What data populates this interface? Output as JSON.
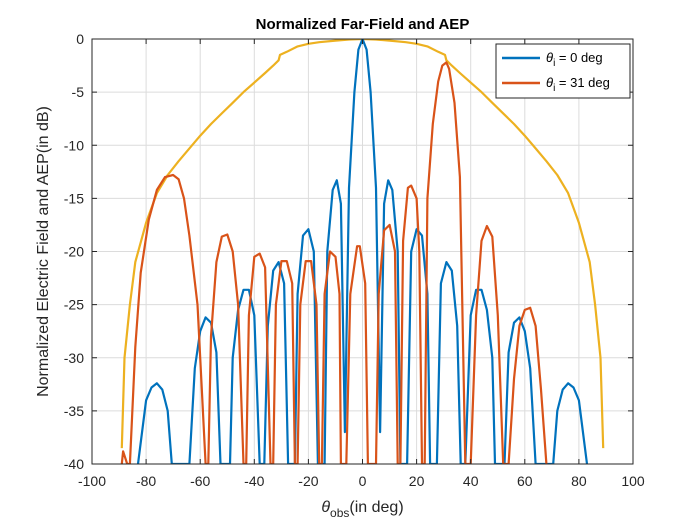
{
  "chart_data": {
    "type": "line",
    "title": "Normalized Far-Field and AEP",
    "xlabel": {
      "main": "θ",
      "sub": "obs",
      "suffix": "(in deg)"
    },
    "ylabel": "Normalized Electric Field and AEP(in dB)",
    "xlim": [
      -100,
      100
    ],
    "ylim": [
      -40,
      0
    ],
    "xticks": [
      "-100",
      "-80",
      "-60",
      "-40",
      "-20",
      "0",
      "20",
      "40",
      "60",
      "80",
      "100"
    ],
    "yticks": [
      "0",
      "-5",
      "-10",
      "-15",
      "-20",
      "-25",
      "-30",
      "-35",
      "-40"
    ],
    "grid": true,
    "legend_position": "top-right",
    "legend": [
      {
        "sym": "θ",
        "sub": "i",
        "rest": " = 0 deg",
        "color": "#0072BD"
      },
      {
        "sym": "θ",
        "sub": "i",
        "rest": " = 31 deg",
        "color": "#D95319"
      }
    ],
    "series": [
      {
        "name": "θi = 0 deg",
        "color": "#0072BD",
        "points": [
          [
            -83,
            -40
          ],
          [
            -80,
            -34
          ],
          [
            -78,
            -32.8
          ],
          [
            -76,
            -32.4
          ],
          [
            -74,
            -33
          ],
          [
            -72,
            -35
          ],
          [
            -70.5,
            -40
          ],
          [
            -64,
            -40
          ],
          [
            -62,
            -31
          ],
          [
            -60,
            -27.5
          ],
          [
            -58,
            -26.2
          ],
          [
            -56,
            -26.7
          ],
          [
            -54,
            -29.5
          ],
          [
            -52.5,
            -40
          ],
          [
            -49,
            -40
          ],
          [
            -48,
            -30
          ],
          [
            -46,
            -25.5
          ],
          [
            -44,
            -23.6
          ],
          [
            -42,
            -23.6
          ],
          [
            -40,
            -26
          ],
          [
            -38,
            -40
          ],
          [
            -36.3,
            -40
          ],
          [
            -35,
            -27
          ],
          [
            -33,
            -21.8
          ],
          [
            -31,
            -21
          ],
          [
            -29,
            -23
          ],
          [
            -27.5,
            -40
          ],
          [
            -25,
            -40
          ],
          [
            -24,
            -24
          ],
          [
            -22,
            -18.5
          ],
          [
            -20,
            -17.9
          ],
          [
            -18,
            -20
          ],
          [
            -16.5,
            -40
          ],
          [
            -14,
            -40
          ],
          [
            -13,
            -20
          ],
          [
            -11,
            -14.2
          ],
          [
            -9.5,
            -13.3
          ],
          [
            -8,
            -15.5
          ],
          [
            -6.5,
            -37
          ],
          [
            -5,
            -14
          ],
          [
            -3,
            -5
          ],
          [
            -1.5,
            -1
          ],
          [
            0,
            0
          ],
          [
            1.5,
            -1
          ],
          [
            3,
            -5
          ],
          [
            5,
            -14
          ],
          [
            6.5,
            -37
          ],
          [
            8,
            -15.5
          ],
          [
            9.5,
            -13.3
          ],
          [
            11,
            -14.2
          ],
          [
            13,
            -20
          ],
          [
            14,
            -40
          ],
          [
            16.5,
            -40
          ],
          [
            18,
            -20
          ],
          [
            20,
            -17.9
          ],
          [
            22,
            -18.5
          ],
          [
            24,
            -24
          ],
          [
            25,
            -40
          ],
          [
            27.5,
            -40
          ],
          [
            29,
            -23
          ],
          [
            31,
            -21
          ],
          [
            33,
            -21.8
          ],
          [
            35,
            -27
          ],
          [
            36.3,
            -40
          ],
          [
            38,
            -40
          ],
          [
            40,
            -26
          ],
          [
            42,
            -23.6
          ],
          [
            44,
            -23.6
          ],
          [
            46,
            -25.5
          ],
          [
            48,
            -30
          ],
          [
            49,
            -40
          ],
          [
            52.5,
            -40
          ],
          [
            54,
            -29.5
          ],
          [
            56,
            -26.7
          ],
          [
            58,
            -26.2
          ],
          [
            60,
            -27.5
          ],
          [
            62,
            -31
          ],
          [
            64,
            -40
          ],
          [
            70.5,
            -40
          ],
          [
            72,
            -35
          ],
          [
            74,
            -33
          ],
          [
            76,
            -32.4
          ],
          [
            78,
            -32.8
          ],
          [
            80,
            -34
          ],
          [
            83,
            -40
          ]
        ]
      },
      {
        "name": "θi = 31 deg",
        "color": "#D95319",
        "points": [
          [
            -89,
            -40
          ],
          [
            -88.5,
            -38.8
          ],
          [
            -87,
            -40
          ],
          [
            -86,
            -40
          ],
          [
            -84,
            -29
          ],
          [
            -82,
            -22
          ],
          [
            -79,
            -17
          ],
          [
            -76,
            -14.2
          ],
          [
            -73,
            -13
          ],
          [
            -70,
            -12.8
          ],
          [
            -68,
            -13.2
          ],
          [
            -66,
            -15
          ],
          [
            -64,
            -18.5
          ],
          [
            -61,
            -25
          ],
          [
            -58,
            -40
          ],
          [
            -57,
            -40
          ],
          [
            -56,
            -28
          ],
          [
            -54,
            -21
          ],
          [
            -52,
            -18.6
          ],
          [
            -50,
            -18.4
          ],
          [
            -48,
            -20
          ],
          [
            -46,
            -25
          ],
          [
            -44,
            -40
          ],
          [
            -43,
            -40
          ],
          [
            -42,
            -26
          ],
          [
            -40,
            -20.5
          ],
          [
            -38,
            -20.2
          ],
          [
            -36,
            -21.5
          ],
          [
            -34,
            -40
          ],
          [
            -33,
            -40
          ],
          [
            -32,
            -25
          ],
          [
            -30,
            -20.9
          ],
          [
            -28,
            -20.9
          ],
          [
            -26,
            -23
          ],
          [
            -25,
            -40
          ],
          [
            -24,
            -40
          ],
          [
            -23,
            -25
          ],
          [
            -21,
            -20.9
          ],
          [
            -19,
            -20.9
          ],
          [
            -17,
            -25
          ],
          [
            -16,
            -40
          ],
          [
            -15,
            -40
          ],
          [
            -14,
            -24
          ],
          [
            -12,
            -20
          ],
          [
            -10,
            -20.5
          ],
          [
            -8.5,
            -24
          ],
          [
            -8,
            -40
          ],
          [
            -6,
            -40
          ],
          [
            -4.5,
            -24
          ],
          [
            -2,
            -19.5
          ],
          [
            -1,
            -19.5
          ],
          [
            1,
            -23
          ],
          [
            2,
            -40
          ],
          [
            5,
            -40
          ],
          [
            6,
            -24
          ],
          [
            8,
            -18
          ],
          [
            10,
            -17.5
          ],
          [
            12,
            -20
          ],
          [
            13,
            -40
          ],
          [
            14,
            -40
          ],
          [
            15,
            -19
          ],
          [
            16.8,
            -14
          ],
          [
            18,
            -13.8
          ],
          [
            20,
            -15
          ],
          [
            21,
            -20
          ],
          [
            22,
            -40
          ],
          [
            23,
            -40
          ],
          [
            24,
            -15
          ],
          [
            26,
            -8
          ],
          [
            28,
            -4
          ],
          [
            29.5,
            -2.5
          ],
          [
            31,
            -2.2
          ],
          [
            32,
            -2.8
          ],
          [
            34,
            -6
          ],
          [
            36,
            -13
          ],
          [
            38,
            -40
          ],
          [
            40,
            -40
          ],
          [
            42,
            -26
          ],
          [
            44,
            -19
          ],
          [
            46,
            -17.6
          ],
          [
            48,
            -18.6
          ],
          [
            50,
            -26
          ],
          [
            52,
            -40
          ],
          [
            54,
            -40
          ],
          [
            56,
            -32
          ],
          [
            58,
            -27
          ],
          [
            60,
            -25.5
          ],
          [
            62,
            -25.3
          ],
          [
            64,
            -27
          ],
          [
            66,
            -33
          ],
          [
            68,
            -40
          ]
        ]
      },
      {
        "name": "AEP",
        "color": "#EDB120",
        "points": [
          [
            -89,
            -38.5
          ],
          [
            -88,
            -30
          ],
          [
            -86,
            -25
          ],
          [
            -84,
            -21
          ],
          [
            -80,
            -17.3
          ],
          [
            -76,
            -14.5
          ],
          [
            -72,
            -12.8
          ],
          [
            -68,
            -11.5
          ],
          [
            -64,
            -10.3
          ],
          [
            -60,
            -9.1
          ],
          [
            -56,
            -8
          ],
          [
            -52,
            -7
          ],
          [
            -48,
            -6
          ],
          [
            -44,
            -5
          ],
          [
            -40,
            -4.1
          ],
          [
            -36,
            -3.2
          ],
          [
            -33,
            -2.5
          ],
          [
            -31,
            -2
          ],
          [
            -30.5,
            -1.5
          ],
          [
            -28,
            -1.2
          ],
          [
            -24,
            -0.7
          ],
          [
            -20,
            -0.45
          ],
          [
            -16,
            -0.3
          ],
          [
            -10,
            -0.15
          ],
          [
            -5,
            -0.05
          ],
          [
            0,
            0
          ],
          [
            5,
            -0.05
          ],
          [
            10,
            -0.15
          ],
          [
            16,
            -0.3
          ],
          [
            20,
            -0.45
          ],
          [
            24,
            -0.7
          ],
          [
            28,
            -1.2
          ],
          [
            30.5,
            -1.5
          ],
          [
            31,
            -2
          ],
          [
            33,
            -2.5
          ],
          [
            36,
            -3.2
          ],
          [
            40,
            -4.1
          ],
          [
            44,
            -5
          ],
          [
            48,
            -6
          ],
          [
            52,
            -7
          ],
          [
            56,
            -8
          ],
          [
            60,
            -9.1
          ],
          [
            64,
            -10.3
          ],
          [
            68,
            -11.5
          ],
          [
            72,
            -12.8
          ],
          [
            76,
            -14.5
          ],
          [
            80,
            -17.3
          ],
          [
            84,
            -21
          ],
          [
            86,
            -25
          ],
          [
            88,
            -30
          ],
          [
            89,
            -38.5
          ]
        ]
      }
    ]
  }
}
